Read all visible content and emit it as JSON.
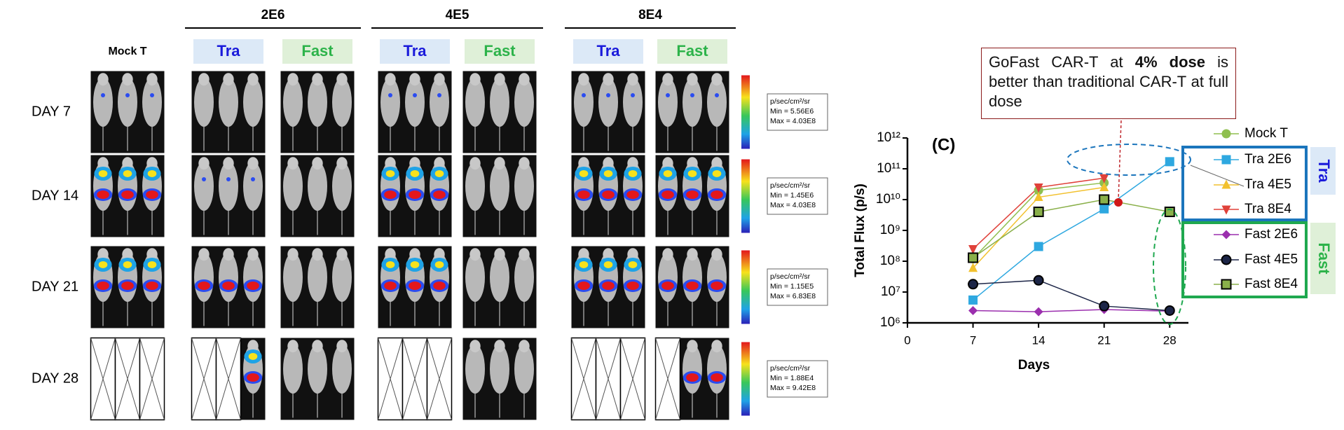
{
  "groups": [
    "2E6",
    "4E5",
    "8E4"
  ],
  "column_labels": [
    "Mock T",
    "Tra",
    "Fast",
    "Tra",
    "Fast",
    "Tra",
    "Fast"
  ],
  "rows": [
    "DAY 7",
    "DAY 14",
    "DAY 21",
    "DAY 28"
  ],
  "scale_bars": [
    {
      "unit": "p/sec/cm²/sr",
      "min": "Min = 5.56E6",
      "max": "Max = 4.03E8"
    },
    {
      "unit": "p/sec/cm²/sr",
      "min": "Min = 1.45E6",
      "max": "Max = 4.03E8"
    },
    {
      "unit": "p/sec/cm²/sr",
      "min": "Min = 1.15E5",
      "max": "Max = 6.83E8"
    },
    {
      "unit": "p/sec/cm²/sr",
      "min": "Min = 1.88E4",
      "max": "Max = 9.42E8"
    }
  ],
  "annotation": [
    "GoFast CAR-T at ",
    "4% dose",
    " is better than traditional CAR-T at full dose"
  ],
  "side_labels": [
    "Tra",
    "Fast"
  ],
  "chart_data": {
    "type": "line",
    "panel_label": "(C)",
    "xlabel": "Days",
    "ylabel": "Total Flux (p/s)",
    "x": [
      7,
      14,
      21,
      28
    ],
    "xlim": [
      0,
      30
    ],
    "xticks": [
      0,
      7,
      14,
      21,
      28
    ],
    "ylim": [
      1000000,
      1000000000000
    ],
    "yscale": "log",
    "yticks": [
      {
        "value": 1000000,
        "label": "10⁶"
      },
      {
        "value": 10000000,
        "label": "10⁷"
      },
      {
        "value": 100000000,
        "label": "10⁸"
      },
      {
        "value": 1000000000,
        "label": "10⁹"
      },
      {
        "value": 10000000000,
        "label": "10¹⁰"
      },
      {
        "value": 100000000000,
        "label": "10¹¹"
      },
      {
        "value": 1000000000000,
        "label": "10¹²"
      }
    ],
    "series": [
      {
        "name": "Mock T",
        "color": "#8fbf4f",
        "marker": "circle",
        "values": [
          120000000,
          20000000000,
          35000000000,
          null
        ]
      },
      {
        "name": "Tra 2E6",
        "color": "#2ea8e0",
        "marker": "square",
        "values": [
          5500000,
          300000000,
          5000000000,
          170000000000
        ]
      },
      {
        "name": "Tra 4E5",
        "color": "#f2c12e",
        "marker": "triangle-up",
        "values": [
          60000000,
          12000000000,
          25000000000,
          null
        ]
      },
      {
        "name": "Tra 8E4",
        "color": "#e0413a",
        "marker": "triangle-down",
        "values": [
          250000000,
          25000000000,
          50000000000,
          null
        ]
      },
      {
        "name": "Fast 2E6",
        "color": "#9b2fae",
        "marker": "diamond",
        "values": [
          2500000,
          2300000,
          2700000,
          2400000
        ]
      },
      {
        "name": "Fast 4E5",
        "color": "#1c2547",
        "marker": "circle",
        "values": [
          18000000,
          24000000,
          3500000,
          2500000
        ]
      },
      {
        "name": "Fast 8E4",
        "color": "#8ab04a",
        "marker": "square",
        "values": [
          130000000,
          4000000000,
          10000000000,
          4000000000
        ]
      }
    ]
  }
}
